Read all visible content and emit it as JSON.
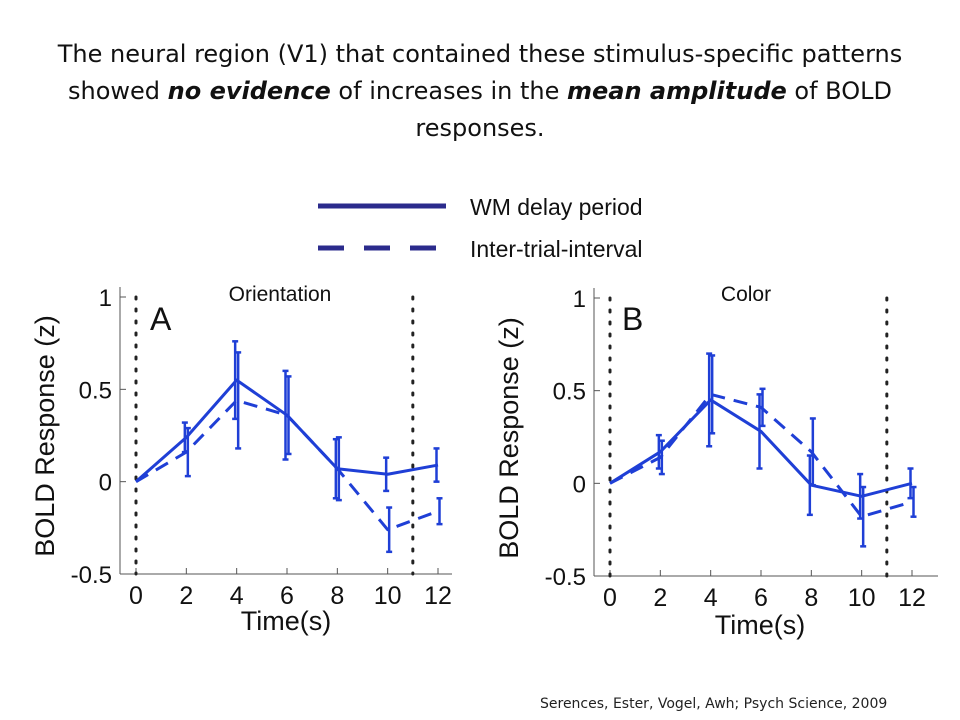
{
  "slide": {
    "title_part1": "The neural region (V1) that contained these stimulus-specific patterns showed ",
    "title_em1": "no evidence",
    "title_part2": " of increases in the ",
    "title_em2": "mean amplitude",
    "title_part3": " of BOLD responses.",
    "citation": "Serences, Ester, Vogel, Awh; Psych Science, 2009"
  },
  "legend": {
    "entries": [
      {
        "label": "WM delay period",
        "style": "solid"
      },
      {
        "label": "Inter-trial-interval",
        "style": "dashed"
      }
    ],
    "color": "#2b2b8c"
  },
  "chart_data": [
    {
      "type": "line",
      "panel_letter": "A",
      "title": "Orientation",
      "xlabel": "Time(s)",
      "ylabel": "BOLD Response (z)",
      "xlim": [
        0,
        12
      ],
      "ylim": [
        -0.5,
        1
      ],
      "xticks": [
        "0",
        "2",
        "4",
        "6",
        "8",
        "10",
        "12"
      ],
      "yticks": [
        "-0.5",
        "0",
        "0.5",
        "1"
      ],
      "vlines": [
        0,
        11
      ],
      "x": [
        0,
        2,
        4,
        6,
        8,
        10,
        12
      ],
      "color": "#1f3fd6",
      "series": [
        {
          "name": "WM delay period",
          "dash": "solid",
          "values": [
            0,
            0.24,
            0.55,
            0.36,
            0.07,
            0.04,
            0.09
          ],
          "err": [
            0,
            0.08,
            0.21,
            0.24,
            0.16,
            0.09,
            0.09
          ]
        },
        {
          "name": "Inter-trial-interval",
          "dash": "dashed",
          "values": [
            0,
            0.16,
            0.44,
            0.36,
            0.07,
            -0.26,
            -0.16
          ],
          "err": [
            0,
            0.13,
            0.26,
            0.21,
            0.17,
            0.12,
            0.07
          ]
        }
      ]
    },
    {
      "type": "line",
      "panel_letter": "B",
      "title": "Color",
      "xlabel": "Time(s)",
      "ylabel": "BOLD Response (z)",
      "xlim": [
        0,
        12
      ],
      "ylim": [
        -0.5,
        1
      ],
      "xticks": [
        "0",
        "2",
        "4",
        "6",
        "8",
        "10",
        "12"
      ],
      "yticks": [
        "-0.5",
        "0",
        "0.5",
        "1"
      ],
      "vlines": [
        0,
        11
      ],
      "x": [
        0,
        2,
        4,
        6,
        8,
        10,
        12
      ],
      "color": "#1f3fd6",
      "series": [
        {
          "name": "WM delay period",
          "dash": "solid",
          "values": [
            0,
            0.17,
            0.45,
            0.28,
            -0.01,
            -0.07,
            0.0
          ],
          "err": [
            0,
            0.09,
            0.25,
            0.2,
            0.16,
            0.12,
            0.08
          ]
        },
        {
          "name": "Inter-trial-interval",
          "dash": "dashed",
          "values": [
            0,
            0.14,
            0.48,
            0.41,
            0.17,
            -0.18,
            -0.1
          ],
          "err": [
            0,
            0.09,
            0.21,
            0.1,
            0.18,
            0.16,
            0.08
          ]
        }
      ]
    }
  ]
}
